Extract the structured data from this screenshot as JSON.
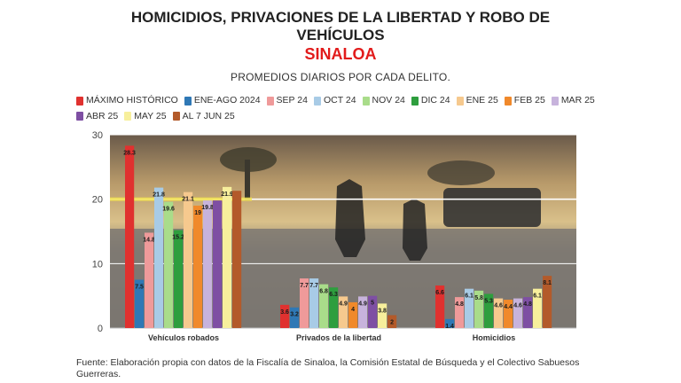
{
  "header": {
    "title_line1": "HOMICIDIOS, PRIVACIONES DE LA LIBERTAD Y ROBO DE",
    "title_line2": "VEHÍCULOS",
    "region": "SINALOA",
    "subtitle": "PROMEDIOS DIARIOS POR CADA DELITO."
  },
  "source": "Fuente: Elaboración propia con datos de la Fiscalía de Sinaloa, la Comisión Estatal de Búsqueda y el Colectivo Sabuesos Guerreras.",
  "chart_data": {
    "type": "bar",
    "title": "HOMICIDIOS, PRIVACIONES DE LA LIBERTAD Y ROBO DE VEHÍCULOS",
    "subtitle": "PROMEDIOS DIARIOS POR CADA DELITO.",
    "categories": [
      "Vehículos robados",
      "Privados de la libertad",
      "Homicidios"
    ],
    "ylim": [
      0,
      30
    ],
    "yticks": [
      0,
      10,
      20,
      30
    ],
    "grid": true,
    "legend_position": "top",
    "reference_line": 20,
    "series": [
      {
        "name": "MÁXIMO HISTÓRICO",
        "color": "#e0312f",
        "values": [
          28.3,
          3.6,
          6.6
        ]
      },
      {
        "name": "ENE-AGO 2024",
        "color": "#2f78b5",
        "values": [
          7.5,
          3.2,
          1.4
        ]
      },
      {
        "name": "SEP 24",
        "color": "#ef9a9a",
        "values": [
          14.8,
          7.7,
          4.8
        ]
      },
      {
        "name": "OCT 24",
        "color": "#a8cbe6",
        "values": [
          21.8,
          7.7,
          6.1
        ]
      },
      {
        "name": "NOV 24",
        "color": "#a9dc8a",
        "values": [
          19.6,
          6.8,
          5.8
        ]
      },
      {
        "name": "DIC 24",
        "color": "#2e9e3e",
        "values": [
          15.2,
          6.3,
          5.3
        ]
      },
      {
        "name": "ENE 25",
        "color": "#f6c98e",
        "values": [
          21.1,
          4.9,
          4.6
        ]
      },
      {
        "name": "FEB 25",
        "color": "#f0892b",
        "values": [
          19,
          4,
          4.4
        ]
      },
      {
        "name": "MAR 25",
        "color": "#c7b3dc",
        "values": [
          19.8,
          4.9,
          4.6
        ]
      },
      {
        "name": "ABR 25",
        "color": "#7e4fa3",
        "values": [
          null,
          5,
          4.8
        ]
      },
      {
        "name": "MAY 25",
        "color": "#f7ef9c",
        "values": [
          21.9,
          3.8,
          6.1
        ]
      },
      {
        "name": "AL 7 JUN 25",
        "color": "#b35a2a",
        "values": [
          null,
          2,
          8.1
        ]
      }
    ],
    "value_labels": [
      [
        "28.3",
        "3.6",
        "6.6"
      ],
      [
        "7.5",
        "3.2",
        "1.4"
      ],
      [
        "14.8",
        "7.7",
        "4.8"
      ],
      [
        "21.8",
        "7.7",
        "6.1"
      ],
      [
        "19.6",
        "6.8",
        "5.8"
      ],
      [
        "15.2",
        "6.3",
        "5.3"
      ],
      [
        "21.1",
        "4.9",
        "4.6"
      ],
      [
        "19",
        "4",
        "4.4"
      ],
      [
        "19.8",
        "4.9",
        "4.6"
      ],
      [
        "",
        "5",
        "4.8"
      ],
      [
        "21.9",
        "3.8",
        "6.1"
      ],
      [
        "",
        "2",
        "8.1"
      ]
    ],
    "bar_heights_unlabeled": [
      [
        null,
        null,
        null
      ],
      [
        null,
        null,
        null
      ],
      [
        null,
        null,
        null
      ],
      [
        null,
        null,
        null
      ],
      [
        null,
        null,
        null
      ],
      [
        null,
        null,
        null
      ],
      [
        null,
        null,
        null
      ],
      [
        null,
        null,
        null
      ],
      [
        null,
        null,
        null
      ],
      [
        19.8,
        null,
        null
      ],
      [
        null,
        null,
        null
      ],
      [
        21.3,
        null,
        null
      ]
    ]
  }
}
